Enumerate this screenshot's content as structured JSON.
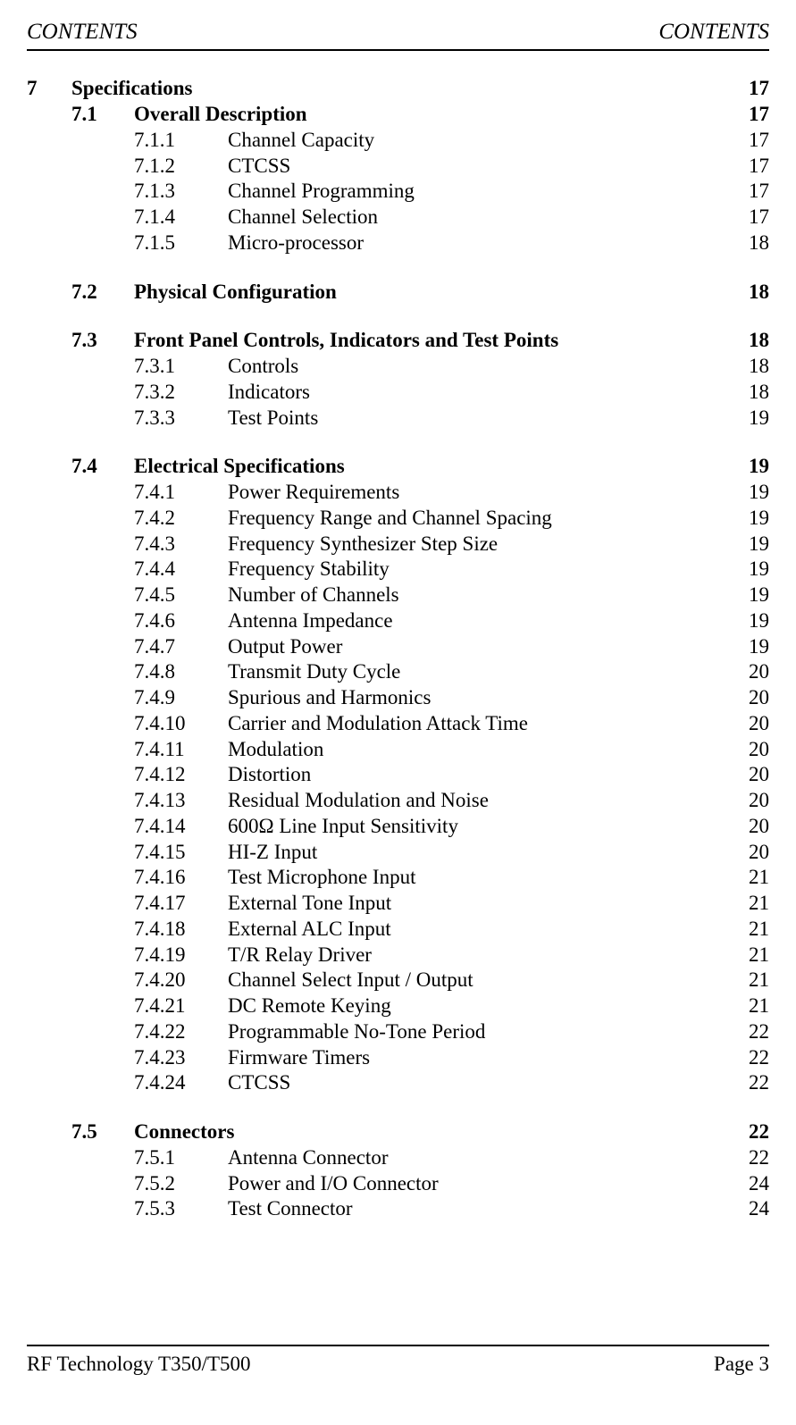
{
  "header": {
    "left": "CONTENTS",
    "right": "CONTENTS"
  },
  "toc": {
    "chapter": {
      "num": "7",
      "title": "Specifications",
      "page": "17"
    },
    "sections": [
      {
        "num": "7.1",
        "title": "Overall Description",
        "page": "17",
        "items": [
          {
            "num": "7.1.1",
            "title": "Channel Capacity",
            "page": "17"
          },
          {
            "num": "7.1.2",
            "title": "CTCSS",
            "page": "17"
          },
          {
            "num": "7.1.3",
            "title": "Channel Programming",
            "page": "17"
          },
          {
            "num": "7.1.4",
            "title": "Channel Selection",
            "page": "17"
          },
          {
            "num": "7.1.5",
            "title": "Micro-processor",
            "page": "18"
          }
        ]
      },
      {
        "num": "7.2",
        "title": "Physical Configuration",
        "page": "18",
        "items": []
      },
      {
        "num": "7.3",
        "title": "Front Panel Controls, Indicators and Test Points",
        "page": "18",
        "items": [
          {
            "num": "7.3.1",
            "title": "Controls",
            "page": "18"
          },
          {
            "num": "7.3.2",
            "title": "Indicators",
            "page": "18"
          },
          {
            "num": "7.3.3",
            "title": "Test Points",
            "page": "19"
          }
        ]
      },
      {
        "num": "7.4",
        "title": "Electrical Specifications",
        "page": "19",
        "items": [
          {
            "num": "7.4.1",
            "title": "Power Requirements",
            "page": "19"
          },
          {
            "num": "7.4.2",
            "title": "Frequency Range and Channel Spacing",
            "page": "19"
          },
          {
            "num": "7.4.3",
            "title": "Frequency Synthesizer Step Size",
            "page": "19"
          },
          {
            "num": "7.4.4",
            "title": "Frequency Stability",
            "page": "19"
          },
          {
            "num": "7.4.5",
            "title": "Number of Channels",
            "page": "19"
          },
          {
            "num": "7.4.6",
            "title": "Antenna Impedance",
            "page": "19"
          },
          {
            "num": "7.4.7",
            "title": "Output Power",
            "page": "19"
          },
          {
            "num": "7.4.8",
            "title": "Transmit Duty Cycle",
            "page": "20"
          },
          {
            "num": "7.4.9",
            "title": "Spurious and Harmonics",
            "page": "20"
          },
          {
            "num": "7.4.10",
            "title": "Carrier and Modulation Attack Time",
            "page": "20"
          },
          {
            "num": "7.4.11",
            "title": "Modulation",
            "page": "20"
          },
          {
            "num": "7.4.12",
            "title": "Distortion",
            "page": "20"
          },
          {
            "num": "7.4.13",
            "title": "Residual Modulation and Noise",
            "page": "20"
          },
          {
            "num": "7.4.14",
            "title": "600Ω Line Input Sensitivity",
            "page": "20"
          },
          {
            "num": "7.4.15",
            "title": "HI-Z Input",
            "page": "20"
          },
          {
            "num": "7.4.16",
            "title": "Test Microphone Input",
            "page": "21"
          },
          {
            "num": "7.4.17",
            "title": "External Tone Input",
            "page": "21"
          },
          {
            "num": "7.4.18",
            "title": "External ALC Input",
            "page": "21"
          },
          {
            "num": "7.4.19",
            "title": "T/R Relay Driver",
            "page": "21"
          },
          {
            "num": "7.4.20",
            "title": "Channel Select Input / Output",
            "page": "21"
          },
          {
            "num": "7.4.21",
            "title": "DC Remote Keying",
            "page": "21"
          },
          {
            "num": "7.4.22",
            "title": "Programmable No-Tone Period",
            "page": "22"
          },
          {
            "num": "7.4.23",
            "title": "Firmware Timers",
            "page": "22"
          },
          {
            "num": "7.4.24",
            "title": "CTCSS",
            "page": "22"
          }
        ]
      },
      {
        "num": "7.5",
        "title": "Connectors",
        "page": "22",
        "items": [
          {
            "num": "7.5.1",
            "title": "Antenna Connector",
            "page": "22"
          },
          {
            "num": "7.5.2",
            "title": "Power and I/O Connector",
            "page": "24"
          },
          {
            "num": "7.5.3",
            "title": "Test Connector",
            "page": "24"
          }
        ]
      }
    ]
  },
  "footer": {
    "left": "RF Technology   T350/T500",
    "right": "Page 3"
  }
}
